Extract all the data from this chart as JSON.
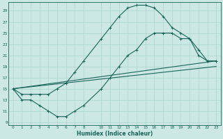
{
  "xlabel": "Humidex (Indice chaleur)",
  "bg_color": "#cce8e4",
  "grid_color": "#aad4cc",
  "line_color": "#1a6358",
  "xlim": [
    -0.5,
    23.5
  ],
  "ylim": [
    8.5,
    30.5
  ],
  "xticks": [
    0,
    1,
    2,
    3,
    4,
    5,
    6,
    7,
    8,
    10,
    11,
    12,
    13,
    14,
    15,
    16,
    17,
    18,
    19,
    20,
    21,
    22,
    23
  ],
  "yticks": [
    9,
    11,
    13,
    15,
    17,
    19,
    21,
    23,
    25,
    27,
    29
  ],
  "upper_x": [
    0,
    1,
    2,
    3,
    4,
    5,
    6,
    7,
    8,
    10,
    11,
    12,
    13,
    14,
    15,
    16,
    17,
    18,
    19,
    20,
    21,
    22,
    23
  ],
  "upper_y": [
    15,
    14,
    14,
    14,
    14,
    15,
    16,
    18,
    20,
    24,
    26,
    28,
    29.5,
    30,
    30,
    29.5,
    28,
    26,
    25,
    24,
    22,
    20,
    20
  ],
  "lower_x": [
    0,
    1,
    2,
    3,
    4,
    5,
    6,
    7,
    8,
    10,
    11,
    12,
    13,
    14,
    15,
    16,
    17,
    18,
    19,
    20,
    21,
    22,
    23
  ],
  "lower_y": [
    15,
    13,
    13,
    12,
    11,
    10,
    10,
    11,
    12,
    15,
    17,
    19,
    21,
    22,
    24,
    25,
    25,
    25,
    24,
    24,
    21,
    20,
    20
  ],
  "line1_x": [
    0,
    23
  ],
  "line1_y": [
    15,
    20
  ],
  "line2_x": [
    0,
    23
  ],
  "line2_y": [
    15,
    19
  ]
}
